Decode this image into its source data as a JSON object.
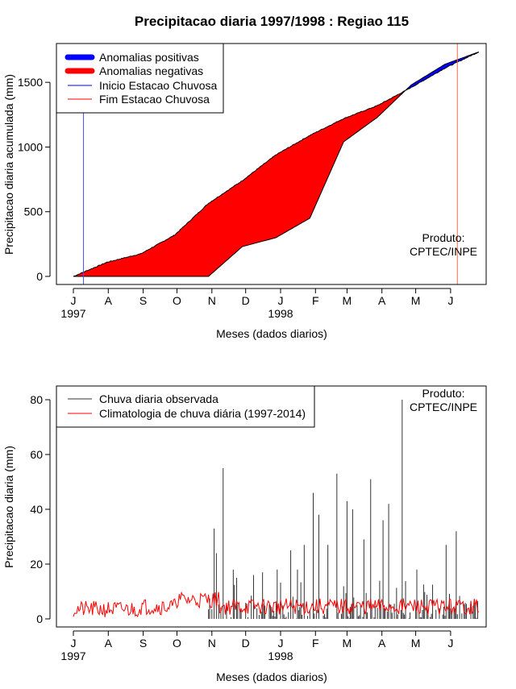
{
  "chart_data": [
    {
      "type": "area",
      "title": "Precipitacao diaria 1997/1998 : Regiao 115",
      "xlabel": "Meses (dados diarios)",
      "ylabel": "Precipitacao diaria acumulada (mm)",
      "ylim": [
        0,
        1750
      ],
      "yticks": [
        0,
        500,
        1000,
        1500
      ],
      "xticks": [
        "J",
        "A",
        "S",
        "O",
        "N",
        "D",
        "J",
        "F",
        "M",
        "A",
        "M",
        "J"
      ],
      "year_labels": [
        "1997",
        "1998"
      ],
      "legend": [
        {
          "label": "Anomalias positivas",
          "color": "#0000ff",
          "style": "thick"
        },
        {
          "label": "Anomalias negativas",
          "color": "#ff0000",
          "style": "thick"
        },
        {
          "label": "Inicio Estacao Chuvosa",
          "color": "#0000ff",
          "style": "thin"
        },
        {
          "label": "Fim Estacao Chuvosa",
          "color": "#ff0000",
          "style": "thin"
        }
      ],
      "legend_position": "top-left",
      "annotation": [
        "Produto:",
        "CPTEC/INPE"
      ],
      "start_rainy_season_day": 9,
      "end_rainy_season_day": 341,
      "x_days": [
        0,
        30,
        60,
        90,
        120,
        150,
        180,
        210,
        240,
        270,
        300,
        330,
        360
      ],
      "series": [
        {
          "name": "Climatologia",
          "values": [
            0,
            110,
            175,
            320,
            565,
            740,
            940,
            1090,
            1220,
            1320,
            1460,
            1610,
            1735
          ]
        },
        {
          "name": "Observado",
          "values": [
            0,
            0,
            0,
            0,
            0,
            230,
            300,
            450,
            1040,
            1230,
            1480,
            1640,
            1735
          ]
        }
      ]
    },
    {
      "type": "bar",
      "xlabel": "Meses (dados diarios)",
      "ylabel": "Precipitacao diaria (mm)",
      "ylim": [
        0,
        85
      ],
      "yticks": [
        0,
        20,
        40,
        60,
        80
      ],
      "xticks": [
        "J",
        "A",
        "S",
        "O",
        "N",
        "D",
        "J",
        "F",
        "M",
        "A",
        "M",
        "J"
      ],
      "year_labels": [
        "1997",
        "1998"
      ],
      "legend": [
        {
          "label": "Chuva diaria observada",
          "color": "#333333"
        },
        {
          "label": "Climatologia de chuva diária (1997-2014)",
          "color": "#ff0000"
        }
      ],
      "legend_position": "top-left",
      "annotation": [
        "Produto:",
        "CPTEC/INPE"
      ],
      "climatology_mean": 4.5,
      "observed_peaks": [
        {
          "day": 125,
          "value": 33
        },
        {
          "day": 127,
          "value": 24
        },
        {
          "day": 133,
          "value": 55
        },
        {
          "day": 142,
          "value": 18
        },
        {
          "day": 145,
          "value": 15
        },
        {
          "day": 160,
          "value": 16
        },
        {
          "day": 168,
          "value": 17
        },
        {
          "day": 181,
          "value": 18
        },
        {
          "day": 193,
          "value": 25
        },
        {
          "day": 199,
          "value": 18
        },
        {
          "day": 205,
          "value": 27
        },
        {
          "day": 213,
          "value": 46
        },
        {
          "day": 218,
          "value": 38
        },
        {
          "day": 226,
          "value": 27
        },
        {
          "day": 234,
          "value": 53
        },
        {
          "day": 243,
          "value": 43
        },
        {
          "day": 248,
          "value": 40
        },
        {
          "day": 258,
          "value": 29
        },
        {
          "day": 264,
          "value": 51
        },
        {
          "day": 275,
          "value": 36
        },
        {
          "day": 280,
          "value": 42
        },
        {
          "day": 292,
          "value": 80
        },
        {
          "day": 305,
          "value": 18
        },
        {
          "day": 331,
          "value": 27
        },
        {
          "day": 340,
          "value": 32
        }
      ]
    }
  ]
}
